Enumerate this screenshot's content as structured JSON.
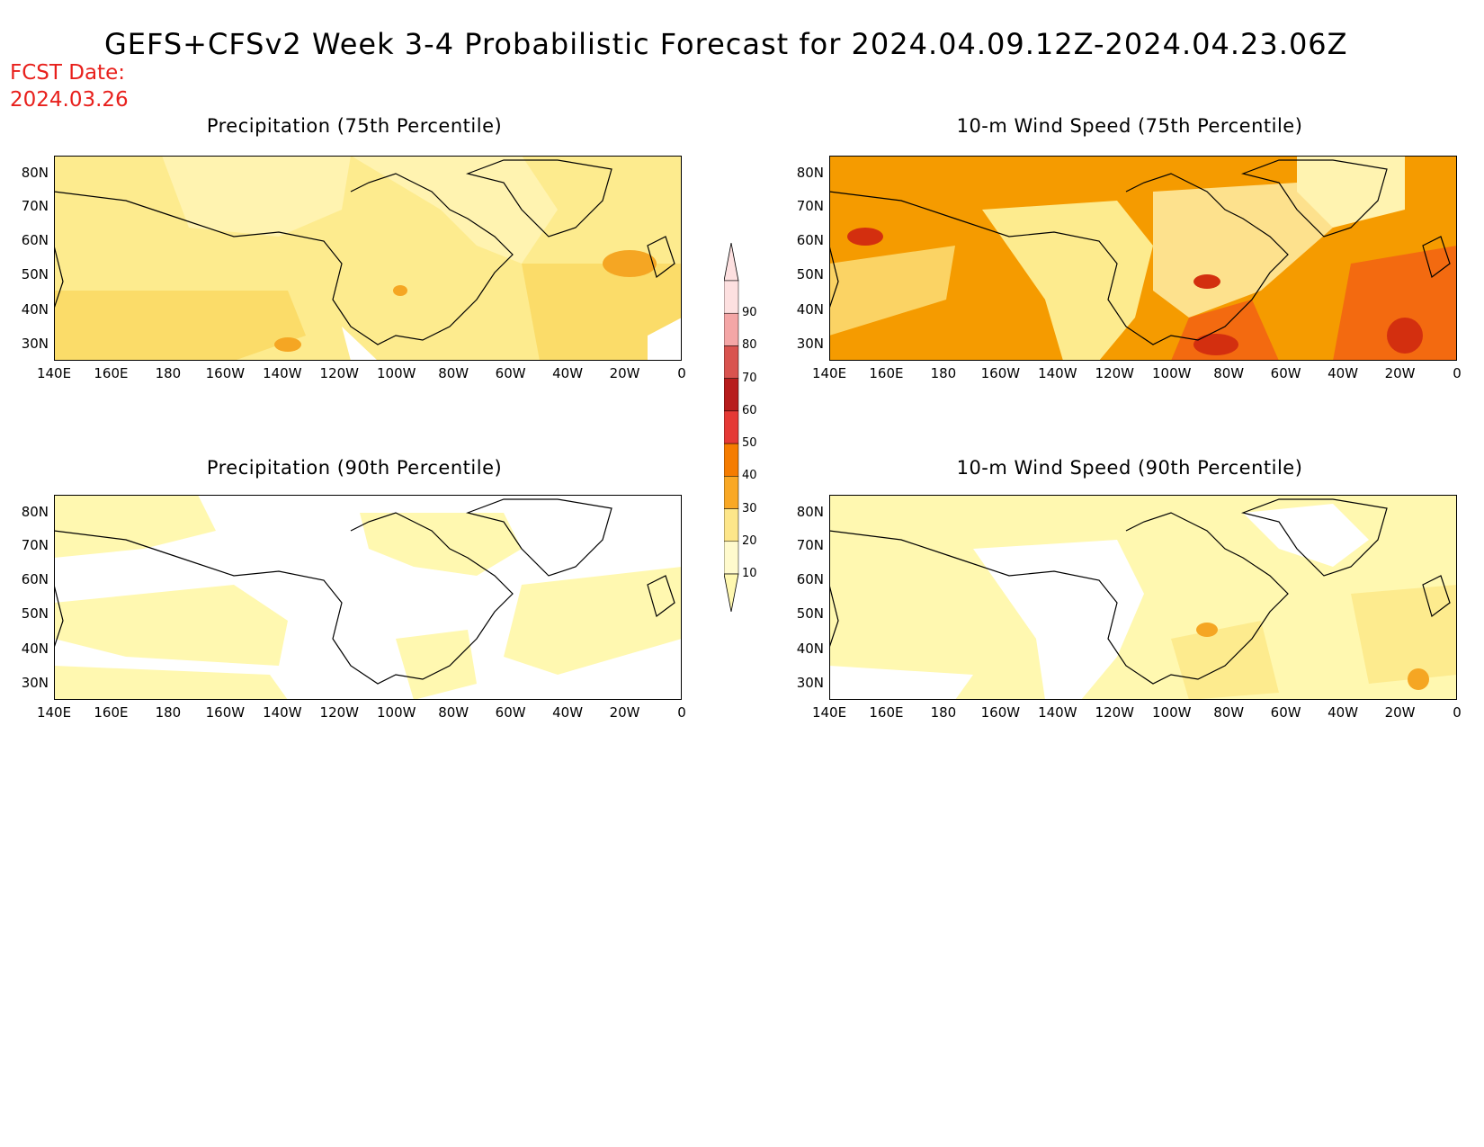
{
  "title": "GEFS+CFSv2 Week 3-4 Probabilistic Forecast for 2024.04.09.12Z-2024.04.23.06Z",
  "fcst_label": "FCST Date:",
  "fcst_date": "2024.03.26",
  "panels": [
    {
      "id": "precip75",
      "title": "Precipitation (75th Percentile)"
    },
    {
      "id": "wind75",
      "title": "10-m Wind Speed (75th Percentile)"
    },
    {
      "id": "precip90",
      "title": "Precipitation (90th Percentile)"
    },
    {
      "id": "wind90",
      "title": "10-m Wind Speed (90th Percentile)"
    }
  ],
  "lat_ticks": [
    "80N",
    "70N",
    "60N",
    "50N",
    "40N",
    "30N"
  ],
  "lon_ticks": [
    "140E",
    "160E",
    "180",
    "160W",
    "140W",
    "120W",
    "100W",
    "80W",
    "60W",
    "40W",
    "20W",
    "0"
  ],
  "colorbar": {
    "labels": [
      "90",
      "80",
      "70",
      "60",
      "50",
      "40",
      "30",
      "20",
      "10"
    ],
    "colors": [
      "#fffacd",
      "#fde68a",
      "#f9a825",
      "#f57c00",
      "#e53935",
      "#b71c1c",
      "#d9534f",
      "#f4a6a6",
      "#fde0e0"
    ]
  },
  "palette": {
    "lightest": "#fff8b0",
    "light": "#fdeb8e",
    "medium": "#f9d65a",
    "orange": "#f59b00",
    "dark_orange": "#f36a10",
    "red": "#e02a10",
    "dark_red": "#b00000"
  }
}
